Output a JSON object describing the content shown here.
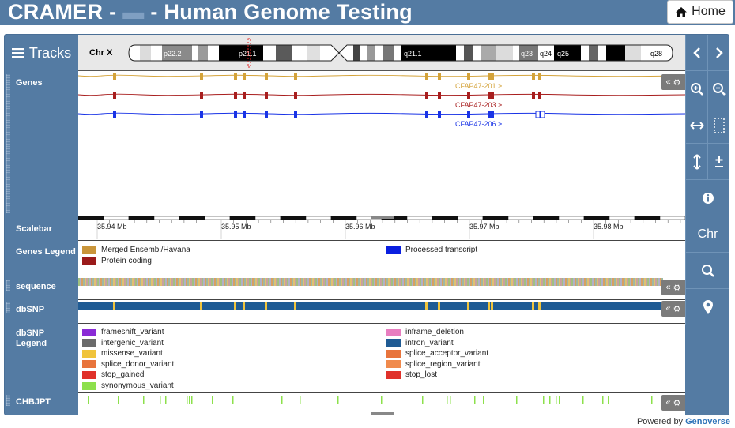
{
  "header": {
    "title_prefix": "CRAMER - ",
    "title_sep": " - ",
    "title_main": "Human Genome Testing",
    "home_label": "Home"
  },
  "browser": {
    "tracks_label": "Tracks",
    "chromosome_label": "Chr X",
    "bands": [
      "p22.2",
      "p21.1",
      "q21.1",
      "q23",
      "q24",
      "q25",
      "q28"
    ],
    "track_labels": {
      "genes": "Genes",
      "scalebar": "Scalebar",
      "genes_legend": "Genes Legend",
      "sequence": "sequence",
      "dbsnp": "dbSNP",
      "dbsnp_legend_1": "dbSNP",
      "dbsnp_legend_2": "Legend",
      "chbjpt": "CHBJPT"
    },
    "transcripts": [
      {
        "name": "CFAP47-201 >",
        "color": "#d4a33a"
      },
      {
        "name": "CFAP47-203 >",
        "color": "#a81e1e"
      },
      {
        "name": "CFAP47-206 >",
        "color": "#1933e6"
      }
    ],
    "scale_ticks": [
      "35.94 Mb",
      "35.95 Mb",
      "35.96 Mb",
      "35.97 Mb",
      "35.98 Mb"
    ],
    "genes_legend": [
      {
        "label": "Merged Ensembl/Havana",
        "color": "#c9953a"
      },
      {
        "label": "Protein coding",
        "color": "#9a1a1a"
      },
      {
        "label": "Processed transcript",
        "color": "#0a1fe0"
      }
    ],
    "dbsnp_legend": [
      {
        "label": "frameshift_variant",
        "color": "#8a2bd6"
      },
      {
        "label": "inframe_deletion",
        "color": "#e87ec0"
      },
      {
        "label": "intergenic_variant",
        "color": "#6b6b6b"
      },
      {
        "label": "intron_variant",
        "color": "#1f5b94"
      },
      {
        "label": "missense_variant",
        "color": "#f0c43c"
      },
      {
        "label": "splice_acceptor_variant",
        "color": "#e8743c"
      },
      {
        "label": "splice_donor_variant",
        "color": "#e8743c"
      },
      {
        "label": "splice_region_variant",
        "color": "#f08a4c"
      },
      {
        "label": "stop_gained",
        "color": "#e0312a"
      },
      {
        "label": "stop_lost",
        "color": "#e0312a"
      },
      {
        "label": "synonymous_variant",
        "color": "#8de04c"
      }
    ],
    "nav": {
      "chr_label": "Chr"
    }
  },
  "footer": {
    "powered_by": "Powered by",
    "brand": "Genoverse"
  }
}
